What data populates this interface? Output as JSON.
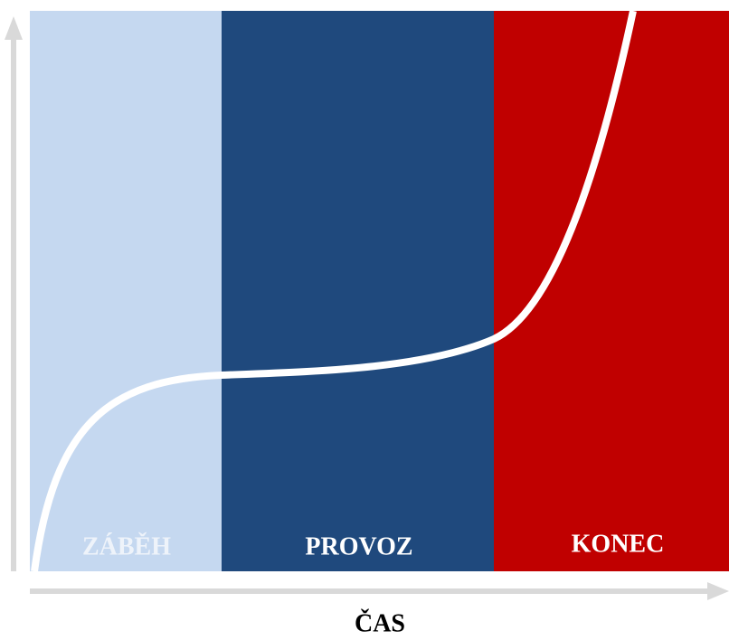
{
  "zones": [
    {
      "label": "ZÁBĚH"
    },
    {
      "label": "PROVOZ"
    },
    {
      "label": "KONEC"
    }
  ],
  "x_axis": {
    "label": "ČAS"
  }
}
